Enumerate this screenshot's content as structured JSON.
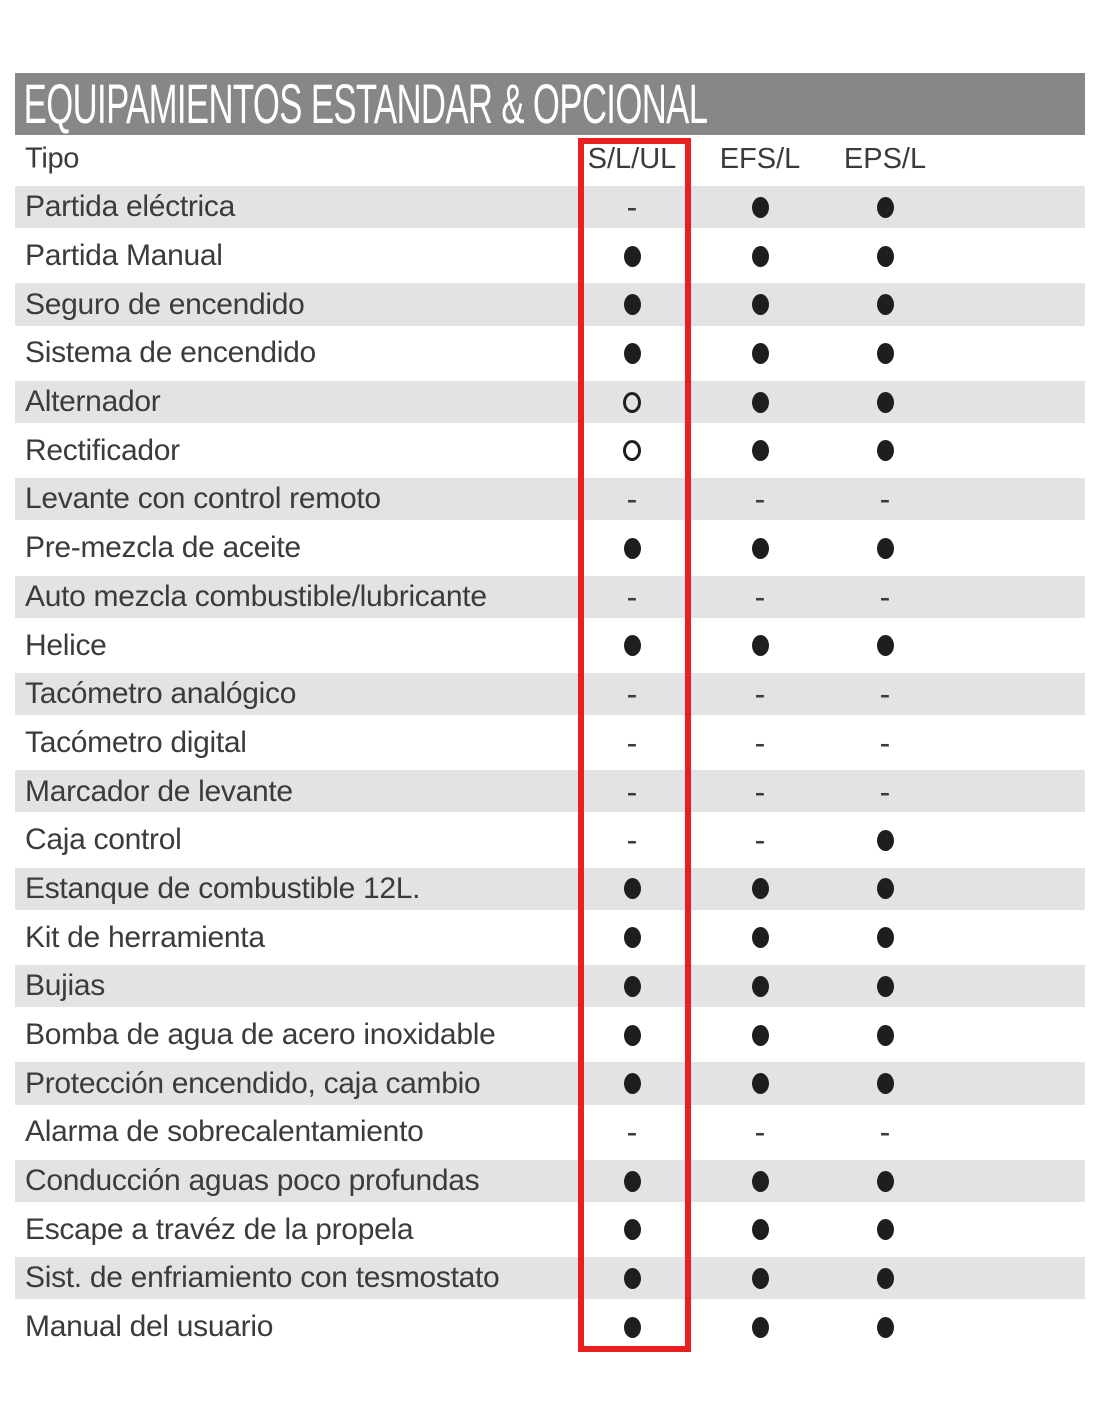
{
  "title": "EQUIPAMIENTOS ESTANDAR & OPCIONAL",
  "table": {
    "type_column_header": "Tipo",
    "columns": [
      "S/L/UL",
      "EFS/L",
      "EPS/L"
    ],
    "highlighted_column": "S/L/UL",
    "rows": [
      {
        "label": "Partida eléctrica",
        "values": [
          "dash",
          "dot",
          "dot"
        ]
      },
      {
        "label": "Partida Manual",
        "values": [
          "dot",
          "dot",
          "dot"
        ]
      },
      {
        "label": "Seguro de encendido",
        "values": [
          "dot",
          "dot",
          "dot"
        ]
      },
      {
        "label": "Sistema de encendido",
        "values": [
          "dot",
          "dot",
          "dot"
        ]
      },
      {
        "label": "Alternador",
        "values": [
          "circle",
          "dot",
          "dot"
        ]
      },
      {
        "label": "Rectificador",
        "values": [
          "circle",
          "dot",
          "dot"
        ]
      },
      {
        "label": "Levante con control remoto",
        "values": [
          "dash",
          "dash",
          "dash"
        ]
      },
      {
        "label": "Pre-mezcla de aceite",
        "values": [
          "dot",
          "dot",
          "dot"
        ]
      },
      {
        "label": "Auto mezcla combustible/lubricante",
        "values": [
          "dash",
          "dash",
          "dash"
        ]
      },
      {
        "label": "Helice",
        "values": [
          "dot",
          "dot",
          "dot"
        ]
      },
      {
        "label": "Tacómetro analógico",
        "values": [
          "dash",
          "dash",
          "dash"
        ]
      },
      {
        "label": "Tacómetro digital",
        "values": [
          "dash",
          "dash",
          "dash"
        ]
      },
      {
        "label": "Marcador de levante",
        "values": [
          "dash",
          "dash",
          "dash"
        ]
      },
      {
        "label": "Caja control",
        "values": [
          "dash",
          "dash",
          "dot"
        ]
      },
      {
        "label": "Estanque de combustible 12L.",
        "values": [
          "dot",
          "dot",
          "dot"
        ]
      },
      {
        "label": "Kit de herramienta",
        "values": [
          "dot",
          "dot",
          "dot"
        ]
      },
      {
        "label": "Bujias",
        "values": [
          "dot",
          "dot",
          "dot"
        ]
      },
      {
        "label": "Bomba de agua de acero inoxidable",
        "values": [
          "dot",
          "dot",
          "dot"
        ]
      },
      {
        "label": "Protección encendido, caja cambio",
        "values": [
          "dot",
          "dot",
          "dot"
        ]
      },
      {
        "label": "Alarma de sobrecalentamiento",
        "values": [
          "dash",
          "dash",
          "dash"
        ]
      },
      {
        "label": "Conducción aguas poco profundas",
        "values": [
          "dot",
          "dot",
          "dot"
        ]
      },
      {
        "label": "Escape a travéz de la propela",
        "values": [
          "dot",
          "dot",
          "dot"
        ]
      },
      {
        "label": "Sist. de enfriamiento con tesmostato",
        "values": [
          "dot",
          "dot",
          "dot"
        ]
      },
      {
        "label": "Manual del usuario",
        "values": [
          "dot",
          "dot",
          "dot"
        ]
      }
    ]
  },
  "symbols": {
    "dash": "-"
  },
  "colors": {
    "title_bar_background": "#878789",
    "title_text": "#ffffff",
    "row_stripe": "#e3e3e5",
    "body_text": "#3b3b3d",
    "dot": "#1e1e1c",
    "highlight_border": "#e9201f"
  }
}
